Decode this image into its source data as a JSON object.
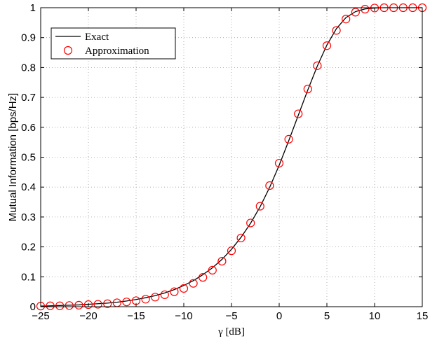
{
  "chart_data": {
    "type": "line",
    "title": "",
    "xlabel": "γ [dB]",
    "ylabel": "Mutual Information [bps/Hz]",
    "xlim": [
      -25,
      15
    ],
    "ylim": [
      0,
      1
    ],
    "xticks": [
      -25,
      -20,
      -15,
      -10,
      -5,
      0,
      5,
      10,
      15
    ],
    "xtick_labels": [
      "−25",
      "−20",
      "−15",
      "−10",
      "−5",
      "0",
      "5",
      "10",
      "15"
    ],
    "yticks": [
      0,
      0.1,
      0.2,
      0.3,
      0.4,
      0.5,
      0.6,
      0.7,
      0.8,
      0.9,
      1
    ],
    "ytick_labels": [
      "0",
      "0.1",
      "0.2",
      "0.3",
      "0.4",
      "0.5",
      "0.6",
      "0.7",
      "0.8",
      "0.9",
      "1"
    ],
    "grid": true,
    "legend_position": "top-left",
    "series": [
      {
        "name": "Exact",
        "style": "line",
        "color": "#000000",
        "x": [
          -25,
          -24,
          -23,
          -22,
          -21,
          -20,
          -19,
          -18,
          -17,
          -16,
          -15,
          -14,
          -13,
          -12,
          -11,
          -10,
          -9,
          -8,
          -7,
          -6,
          -5,
          -4,
          -3,
          -2,
          -1,
          0,
          1,
          2,
          3,
          4,
          5,
          6,
          7,
          8,
          9,
          10,
          11,
          12,
          13,
          14,
          15
        ],
        "y": [
          0.002,
          0.003,
          0.004,
          0.005,
          0.006,
          0.008,
          0.01,
          0.012,
          0.015,
          0.019,
          0.024,
          0.03,
          0.037,
          0.046,
          0.057,
          0.071,
          0.087,
          0.107,
          0.13,
          0.158,
          0.192,
          0.232,
          0.279,
          0.334,
          0.399,
          0.473,
          0.555,
          0.64,
          0.725,
          0.805,
          0.875,
          0.93,
          0.967,
          0.987,
          0.996,
          0.999,
          1.0,
          1.0,
          1.0,
          1.0,
          1.0
        ]
      },
      {
        "name": "Approximation",
        "style": "marker",
        "marker": "circle",
        "color": "#ff0000",
        "x": [
          -25,
          -24,
          -23,
          -22,
          -21,
          -20,
          -19,
          -18,
          -17,
          -16,
          -15,
          -14,
          -13,
          -12,
          -11,
          -10,
          -9,
          -8,
          -7,
          -6,
          -5,
          -4,
          -3,
          -2,
          -1,
          0,
          1,
          2,
          3,
          4,
          5,
          6,
          7,
          8,
          9,
          10,
          11,
          12,
          13,
          14,
          15
        ],
        "y": [
          0.002,
          0.003,
          0.003,
          0.004,
          0.005,
          0.007,
          0.008,
          0.01,
          0.013,
          0.016,
          0.02,
          0.025,
          0.032,
          0.04,
          0.05,
          0.061,
          0.078,
          0.098,
          0.122,
          0.152,
          0.187,
          0.23,
          0.28,
          0.336,
          0.405,
          0.48,
          0.56,
          0.645,
          0.728,
          0.806,
          0.873,
          0.924,
          0.962,
          0.985,
          0.995,
          0.999,
          1.0,
          1.0,
          1.0,
          1.0,
          1.0
        ]
      }
    ]
  }
}
